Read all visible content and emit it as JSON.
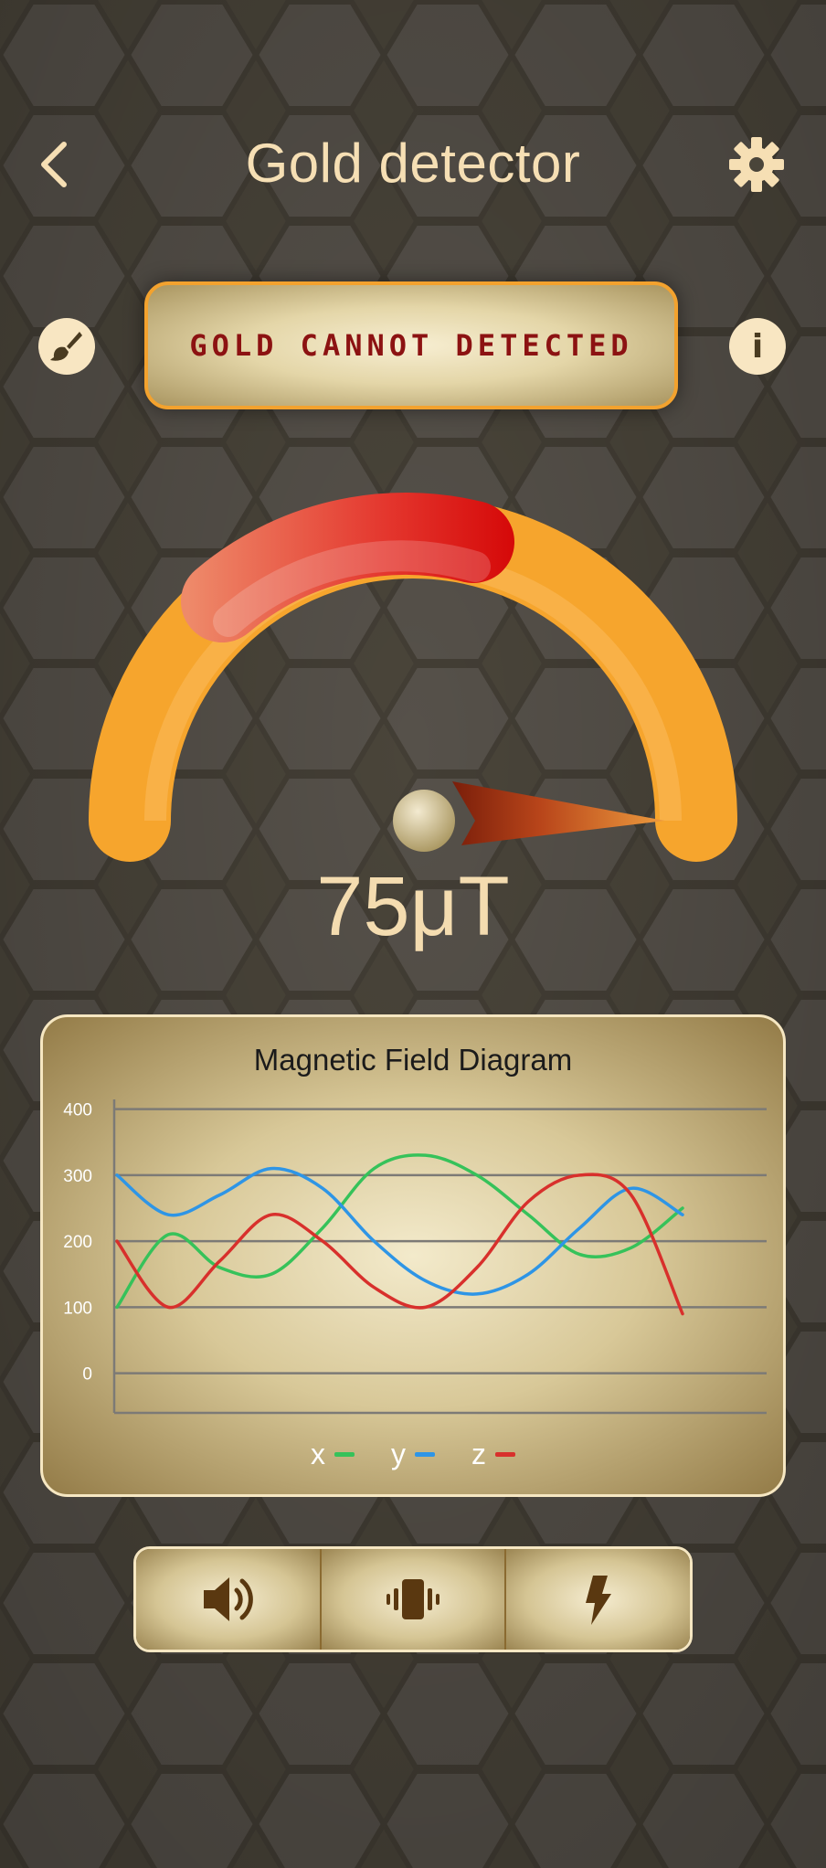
{
  "app": {
    "title": "Gold detector"
  },
  "icons": {
    "back": "back-arrow-icon",
    "settings": "gear-icon",
    "theme": "paint-brush-icon",
    "info": "info-icon",
    "sound": "speaker-icon",
    "vibration": "vibration-icon",
    "flash": "flash-icon"
  },
  "info_glyph": "i",
  "status": {
    "message": "GOLD CANNOT DETECTED"
  },
  "meter": {
    "reading": "75μT",
    "max": 100
  },
  "colors": {
    "accent": "#f6a52d",
    "status_text": "#8c1212",
    "title_text": "#f6dfb4",
    "series_x": "#36c25a",
    "series_y": "#2e95e6",
    "series_z": "#d8302c"
  },
  "chart_data": {
    "type": "line",
    "title": "Magnetic Field Diagram",
    "xlabel": "",
    "ylabel": "",
    "ylim": [
      -60,
      470
    ],
    "y_ticks": [
      0,
      100,
      200,
      300,
      400
    ],
    "grid": true,
    "legend": "bottom",
    "x": [
      0,
      1,
      2,
      3,
      4,
      5,
      6,
      7,
      8,
      9,
      10,
      11
    ],
    "series": [
      {
        "name": "x",
        "color": "#36c25a",
        "values": [
          100,
          210,
          160,
          150,
          220,
          310,
          330,
          300,
          240,
          180,
          190,
          250
        ]
      },
      {
        "name": "y",
        "color": "#2e95e6",
        "values": [
          300,
          240,
          270,
          310,
          280,
          200,
          140,
          120,
          150,
          220,
          280,
          240
        ]
      },
      {
        "name": "z",
        "color": "#d8302c",
        "values": [
          200,
          100,
          170,
          240,
          200,
          130,
          100,
          160,
          260,
          300,
          270,
          90
        ]
      }
    ]
  }
}
